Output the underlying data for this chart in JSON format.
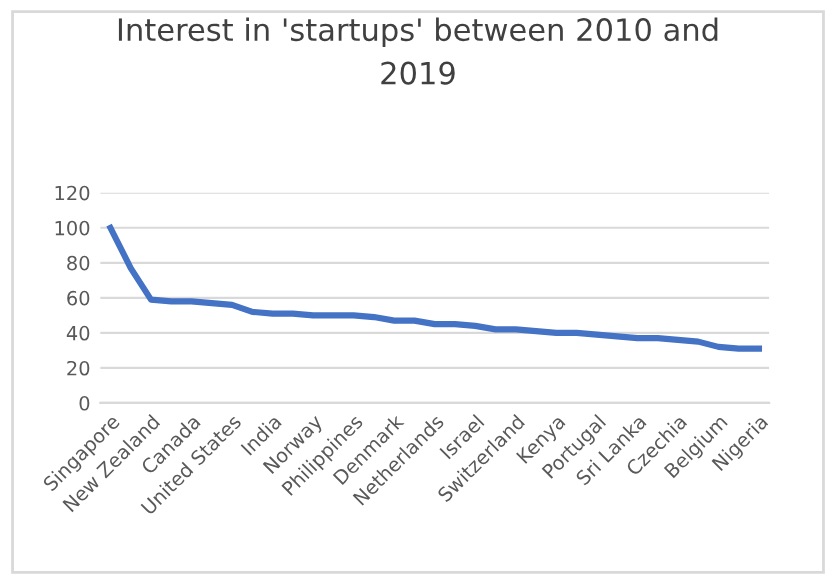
{
  "chart_data": {
    "type": "line",
    "title": "Interest in 'startups' between 2010 and\n2019",
    "categories": [
      "Singapore",
      null,
      "New Zealand",
      null,
      "Canada",
      null,
      "United States",
      null,
      "India",
      null,
      "Norway",
      null,
      "Philippines",
      null,
      "Denmark",
      null,
      "Netherlands",
      null,
      "Israel",
      null,
      "Switzerland",
      null,
      "Kenya",
      null,
      "Portugal",
      null,
      "Sri Lanka",
      null,
      "Czechia",
      null,
      "Belgium",
      null,
      "Nigeria"
    ],
    "series": [
      {
        "color": "#4472c4",
        "values": [
          100,
          77,
          59,
          58,
          58,
          57,
          56,
          52,
          51,
          51,
          50,
          50,
          50,
          49,
          47,
          47,
          45,
          45,
          44,
          42,
          42,
          41,
          40,
          40,
          39,
          38,
          37,
          37,
          36,
          35,
          32,
          31,
          31
        ]
      }
    ],
    "ylim": [
      0,
      120
    ],
    "yticks": [
      0,
      20,
      40,
      60,
      80,
      100,
      120
    ],
    "grid": "y",
    "legend": false
  }
}
